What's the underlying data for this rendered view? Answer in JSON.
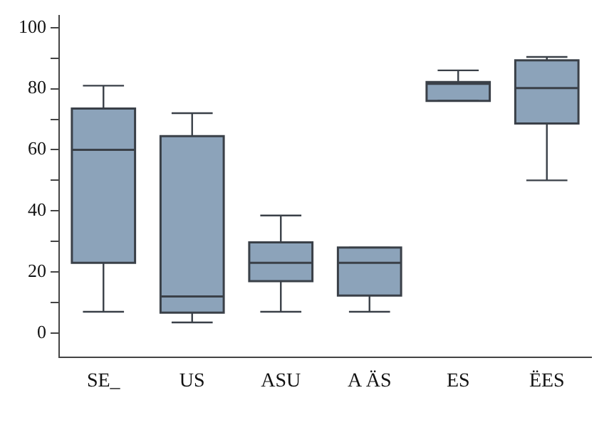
{
  "chart_data": {
    "type": "box",
    "categories": [
      "SE_",
      "US",
      "ASU",
      "A ÄS",
      "ES",
      "ËES"
    ],
    "color": "#8ca3ba",
    "boxes": [
      {
        "low": 7,
        "q1": 23,
        "median": 60,
        "q3": 73.5,
        "high": 81
      },
      {
        "low": 3.5,
        "q1": 6.7,
        "median": 12,
        "q3": 64.5,
        "high": 72
      },
      {
        "low": 7,
        "q1": 17,
        "median": 23,
        "q3": 29.7,
        "high": 38.5
      },
      {
        "low": 7,
        "q1": 12.3,
        "median": 23,
        "q3": 28,
        "high": 28
      },
      {
        "low": 76,
        "q1": 76,
        "median": 81.6,
        "q3": 82.2,
        "high": 86
      },
      {
        "low": 50,
        "q1": 68.6,
        "median": 80.2,
        "q3": 89.3,
        "high": 90.4
      }
    ],
    "ylim": [
      -8,
      104
    ],
    "yticks": [
      0,
      {
        "value": 10,
        "label": null
      },
      20,
      {
        "value": 30,
        "label": null
      },
      40,
      {
        "value": 50,
        "label": null
      },
      60,
      {
        "value": 70,
        "label": null
      },
      80,
      {
        "value": 90,
        "label": null
      },
      100
    ],
    "grid": false,
    "legend": false
  }
}
